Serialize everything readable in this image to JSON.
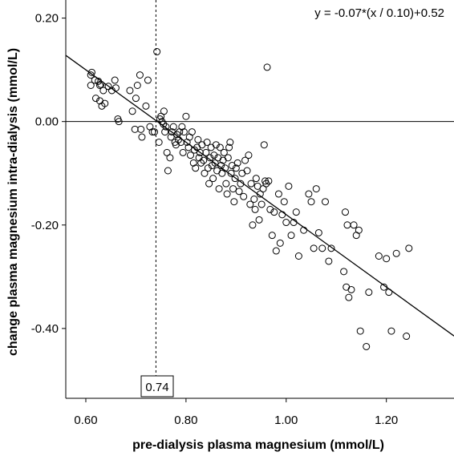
{
  "chart_data": {
    "type": "scatter",
    "xlabel": "pre-dialysis plasma magnesium (mmol/L)",
    "ylabel": "change plasma magnesium intra-dialysis (mmol/L)",
    "xlim": [
      0.56,
      1.335
    ],
    "ylim": [
      -0.535,
      0.235
    ],
    "x_ticks": [
      0.6,
      0.8,
      1.0,
      1.2
    ],
    "x_tick_labels": [
      "0.60",
      "0.80",
      "1.00",
      "1.20"
    ],
    "y_ticks": [
      0.2,
      0.0,
      -0.2,
      -0.4
    ],
    "y_tick_labels": [
      "0.20",
      "0.00",
      "-0.20",
      "-0.40"
    ],
    "equation_label": "y = -0.07*(x / 0.10)+0.52",
    "reference_line": {
      "x": 0.74,
      "label": "0.74"
    },
    "zero_line": {
      "y": 0.0
    },
    "fit": {
      "slope_per_unit": -0.7,
      "intercept": 0.52,
      "x_range": [
        0.56,
        1.335
      ]
    },
    "grid": false,
    "legend": "none",
    "points": [
      [
        0.61,
        0.09
      ],
      [
        0.612,
        0.095
      ],
      [
        0.61,
        0.07
      ],
      [
        0.618,
        0.08
      ],
      [
        0.625,
        0.078
      ],
      [
        0.628,
        0.07
      ],
      [
        0.63,
        0.072
      ],
      [
        0.635,
        0.06
      ],
      [
        0.62,
        0.045
      ],
      [
        0.628,
        0.04
      ],
      [
        0.632,
        0.03
      ],
      [
        0.638,
        0.035
      ],
      [
        0.645,
        0.068
      ],
      [
        0.652,
        0.06
      ],
      [
        0.658,
        0.08
      ],
      [
        0.66,
        0.065
      ],
      [
        0.664,
        0.005
      ],
      [
        0.666,
        0.0
      ],
      [
        0.688,
        0.06
      ],
      [
        0.693,
        0.02
      ],
      [
        0.7,
        0.045
      ],
      [
        0.703,
        0.07
      ],
      [
        0.708,
        0.09
      ],
      [
        0.698,
        -0.015
      ],
      [
        0.71,
        -0.015
      ],
      [
        0.712,
        -0.03
      ],
      [
        0.72,
        0.03
      ],
      [
        0.724,
        0.08
      ],
      [
        0.728,
        -0.01
      ],
      [
        0.733,
        -0.02
      ],
      [
        0.737,
        -0.02
      ],
      [
        0.742,
        0.135
      ],
      [
        0.746,
        -0.04
      ],
      [
        0.748,
        0.005
      ],
      [
        0.75,
        0.01
      ],
      [
        0.752,
        0.0
      ],
      [
        0.755,
        -0.005
      ],
      [
        0.756,
        0.02
      ],
      [
        0.758,
        -0.02
      ],
      [
        0.76,
        -0.01
      ],
      [
        0.762,
        -0.06
      ],
      [
        0.764,
        -0.095
      ],
      [
        0.768,
        -0.07
      ],
      [
        0.77,
        -0.03
      ],
      [
        0.772,
        -0.02
      ],
      [
        0.775,
        -0.01
      ],
      [
        0.778,
        -0.04
      ],
      [
        0.78,
        -0.045
      ],
      [
        0.782,
        -0.025
      ],
      [
        0.785,
        -0.035
      ],
      [
        0.787,
        -0.02
      ],
      [
        0.79,
        -0.04
      ],
      [
        0.792,
        -0.01
      ],
      [
        0.794,
        -0.06
      ],
      [
        0.796,
        -0.02
      ],
      [
        0.8,
        0.01
      ],
      [
        0.802,
        -0.04
      ],
      [
        0.805,
        -0.05
      ],
      [
        0.807,
        -0.03
      ],
      [
        0.809,
        -0.065
      ],
      [
        0.812,
        -0.02
      ],
      [
        0.815,
        -0.08
      ],
      [
        0.817,
        -0.055
      ],
      [
        0.819,
        -0.09
      ],
      [
        0.822,
        -0.05
      ],
      [
        0.824,
        -0.035
      ],
      [
        0.826,
        -0.07
      ],
      [
        0.828,
        -0.06
      ],
      [
        0.83,
        -0.08
      ],
      [
        0.832,
        -0.045
      ],
      [
        0.835,
        -0.075
      ],
      [
        0.837,
        -0.1
      ],
      [
        0.84,
        -0.06
      ],
      [
        0.842,
        -0.04
      ],
      [
        0.844,
        -0.09
      ],
      [
        0.846,
        -0.12
      ],
      [
        0.848,
        -0.07
      ],
      [
        0.85,
        -0.05
      ],
      [
        0.852,
        -0.085
      ],
      [
        0.854,
        -0.11
      ],
      [
        0.856,
        -0.065
      ],
      [
        0.858,
        -0.08
      ],
      [
        0.86,
        -0.045
      ],
      [
        0.862,
        -0.095
      ],
      [
        0.864,
        -0.07
      ],
      [
        0.866,
        -0.13
      ],
      [
        0.868,
        -0.05
      ],
      [
        0.87,
        -0.085
      ],
      [
        0.872,
        -0.1
      ],
      [
        0.874,
        -0.075
      ],
      [
        0.876,
        -0.06
      ],
      [
        0.878,
        -0.09
      ],
      [
        0.88,
        -0.12
      ],
      [
        0.882,
        -0.14
      ],
      [
        0.884,
        -0.07
      ],
      [
        0.886,
        -0.05
      ],
      [
        0.888,
        -0.04
      ],
      [
        0.89,
        -0.1
      ],
      [
        0.892,
        -0.085
      ],
      [
        0.894,
        -0.13
      ],
      [
        0.896,
        -0.155
      ],
      [
        0.898,
        -0.11
      ],
      [
        0.9,
        -0.09
      ],
      [
        0.903,
        -0.08
      ],
      [
        0.906,
        -0.135
      ],
      [
        0.909,
        -0.12
      ],
      [
        0.912,
        -0.1
      ],
      [
        0.915,
        -0.145
      ],
      [
        0.918,
        -0.075
      ],
      [
        0.922,
        -0.095
      ],
      [
        0.925,
        -0.065
      ],
      [
        0.928,
        -0.16
      ],
      [
        0.93,
        -0.12
      ],
      [
        0.933,
        -0.2
      ],
      [
        0.936,
        -0.15
      ],
      [
        0.938,
        -0.17
      ],
      [
        0.94,
        -0.11
      ],
      [
        0.943,
        -0.125
      ],
      [
        0.946,
        -0.19
      ],
      [
        0.948,
        -0.14
      ],
      [
        0.951,
        -0.16
      ],
      [
        0.954,
        -0.13
      ],
      [
        0.956,
        -0.045
      ],
      [
        0.958,
        -0.115
      ],
      [
        0.96,
        -0.12
      ],
      [
        0.962,
        0.105
      ],
      [
        0.965,
        -0.115
      ],
      [
        0.968,
        -0.17
      ],
      [
        0.972,
        -0.22
      ],
      [
        0.976,
        -0.175
      ],
      [
        0.98,
        -0.25
      ],
      [
        0.985,
        -0.14
      ],
      [
        0.988,
        -0.235
      ],
      [
        0.992,
        -0.18
      ],
      [
        0.996,
        -0.155
      ],
      [
        1.0,
        -0.195
      ],
      [
        1.005,
        -0.125
      ],
      [
        1.01,
        -0.22
      ],
      [
        1.015,
        -0.195
      ],
      [
        1.02,
        -0.175
      ],
      [
        1.025,
        -0.26
      ],
      [
        1.035,
        -0.21
      ],
      [
        1.045,
        -0.14
      ],
      [
        1.05,
        -0.155
      ],
      [
        1.055,
        -0.245
      ],
      [
        1.06,
        -0.13
      ],
      [
        1.065,
        -0.215
      ],
      [
        1.072,
        -0.245
      ],
      [
        1.078,
        -0.155
      ],
      [
        1.085,
        -0.27
      ],
      [
        1.09,
        -0.245
      ],
      [
        1.115,
        -0.29
      ],
      [
        1.118,
        -0.175
      ],
      [
        1.12,
        -0.32
      ],
      [
        1.122,
        -0.2
      ],
      [
        1.125,
        -0.34
      ],
      [
        1.13,
        -0.325
      ],
      [
        1.135,
        -0.2
      ],
      [
        1.14,
        -0.22
      ],
      [
        1.145,
        -0.21
      ],
      [
        1.148,
        -0.405
      ],
      [
        1.16,
        -0.435
      ],
      [
        1.165,
        -0.33
      ],
      [
        1.185,
        -0.26
      ],
      [
        1.195,
        -0.32
      ],
      [
        1.2,
        -0.265
      ],
      [
        1.205,
        -0.33
      ],
      [
        1.21,
        -0.405
      ],
      [
        1.22,
        -0.255
      ],
      [
        1.24,
        -0.415
      ],
      [
        1.245,
        -0.245
      ]
    ]
  }
}
